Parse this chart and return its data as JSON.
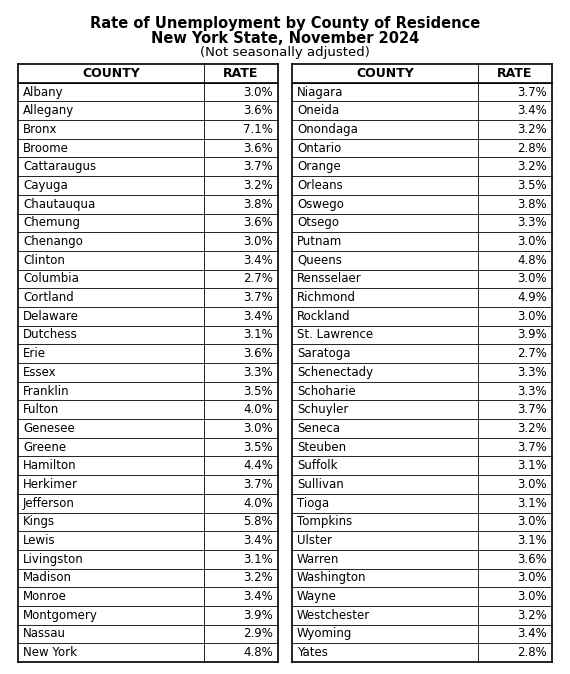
{
  "title_line1": "Rate of Unemployment by County of Residence",
  "title_line2": "New York State, November 2024",
  "title_line3": "(Not seasonally adjusted)",
  "left_counties": [
    "Albany",
    "Allegany",
    "Bronx",
    "Broome",
    "Cattaraugus",
    "Cayuga",
    "Chautauqua",
    "Chemung",
    "Chenango",
    "Clinton",
    "Columbia",
    "Cortland",
    "Delaware",
    "Dutchess",
    "Erie",
    "Essex",
    "Franklin",
    "Fulton",
    "Genesee",
    "Greene",
    "Hamilton",
    "Herkimer",
    "Jefferson",
    "Kings",
    "Lewis",
    "Livingston",
    "Madison",
    "Monroe",
    "Montgomery",
    "Nassau",
    "New York"
  ],
  "left_rates": [
    "3.0%",
    "3.6%",
    "7.1%",
    "3.6%",
    "3.7%",
    "3.2%",
    "3.8%",
    "3.6%",
    "3.0%",
    "3.4%",
    "2.7%",
    "3.7%",
    "3.4%",
    "3.1%",
    "3.6%",
    "3.3%",
    "3.5%",
    "4.0%",
    "3.0%",
    "3.5%",
    "4.4%",
    "3.7%",
    "4.0%",
    "5.8%",
    "3.4%",
    "3.1%",
    "3.2%",
    "3.4%",
    "3.9%",
    "2.9%",
    "4.8%"
  ],
  "right_counties": [
    "Niagara",
    "Oneida",
    "Onondaga",
    "Ontario",
    "Orange",
    "Orleans",
    "Oswego",
    "Otsego",
    "Putnam",
    "Queens",
    "Rensselaer",
    "Richmond",
    "Rockland",
    "St. Lawrence",
    "Saratoga",
    "Schenectady",
    "Schoharie",
    "Schuyler",
    "Seneca",
    "Steuben",
    "Suffolk",
    "Sullivan",
    "Tioga",
    "Tompkins",
    "Ulster",
    "Warren",
    "Washington",
    "Wayne",
    "Westchester",
    "Wyoming",
    "Yates"
  ],
  "right_rates": [
    "3.7%",
    "3.4%",
    "3.2%",
    "2.8%",
    "3.2%",
    "3.5%",
    "3.8%",
    "3.3%",
    "3.0%",
    "4.8%",
    "3.0%",
    "4.9%",
    "3.0%",
    "3.9%",
    "2.7%",
    "3.3%",
    "3.3%",
    "3.7%",
    "3.2%",
    "3.7%",
    "3.1%",
    "3.0%",
    "3.1%",
    "3.0%",
    "3.1%",
    "3.6%",
    "3.0%",
    "3.0%",
    "3.2%",
    "3.4%",
    "2.8%"
  ],
  "bg_color": "#ffffff",
  "border_color": "#000000",
  "text_color": "#000000",
  "title_fontsize": 10.5,
  "subtitle_fontsize": 10.5,
  "note_fontsize": 9.5,
  "header_fontsize": 9.0,
  "data_fontsize": 8.5
}
